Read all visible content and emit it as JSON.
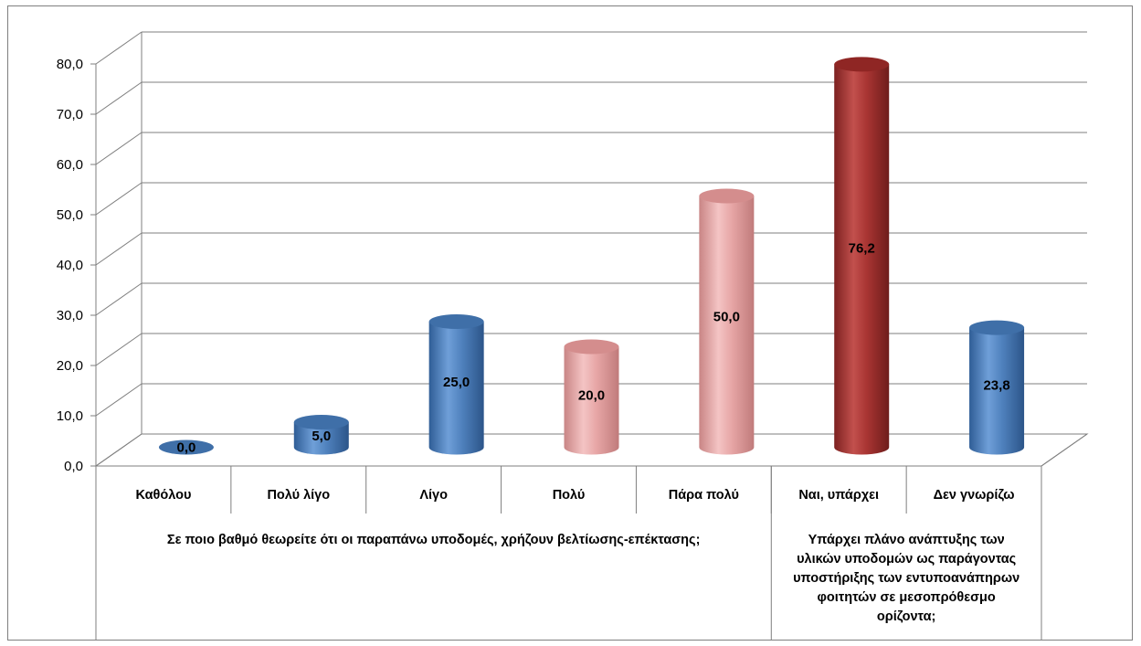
{
  "chart_data": {
    "type": "bar",
    "style": "3d-cylinder",
    "categories": [
      "Καθόλου",
      "Πολύ λίγο",
      "Λίγο",
      "Πολύ",
      "Πάρα πολύ",
      "Ναι, υπάρχει",
      "Δεν γνωρίζω"
    ],
    "values": [
      0.0,
      5.0,
      25.0,
      20.0,
      50.0,
      76.2,
      23.8
    ],
    "value_labels": [
      "0,0",
      "5,0",
      "25,0",
      "20,0",
      "50,0",
      "76,2",
      "23,8"
    ],
    "bar_colors": [
      "#4f81bd",
      "#4f81bd",
      "#4f81bd",
      "#e6a5a5",
      "#e6a5a5",
      "#a83432",
      "#4f81bd"
    ],
    "ylim": [
      0,
      80
    ],
    "yticks": [
      0,
      10,
      20,
      30,
      40,
      50,
      60,
      70,
      80
    ],
    "ytick_labels": [
      "0,0",
      "10,0",
      "20,0",
      "30,0",
      "40,0",
      "50,0",
      "60,0",
      "70,0",
      "80,0"
    ],
    "grid": true,
    "groups": [
      {
        "label_lines": [
          "Σε ποιο βαθμό θεωρείτε ότι οι παραπάνω υποδομές, χρήζουν βελτίωσης-επέκτασης;"
        ],
        "categories": [
          "Καθόλου",
          "Πολύ λίγο",
          "Λίγο",
          "Πολύ",
          "Πάρα πολύ"
        ]
      },
      {
        "label_lines": [
          "Υπάρχει πλάνο ανάπτυξης των",
          "υλικών υποδομών ως παράγοντας",
          "υποστήριξης των εντυποανάπηρων",
          "φοιτητών σε μεσοπρόθεσμο",
          "ορίζοντα;"
        ],
        "categories": [
          "Ναι, υπάρχει",
          "Δεν γνωρίζω"
        ]
      }
    ]
  }
}
